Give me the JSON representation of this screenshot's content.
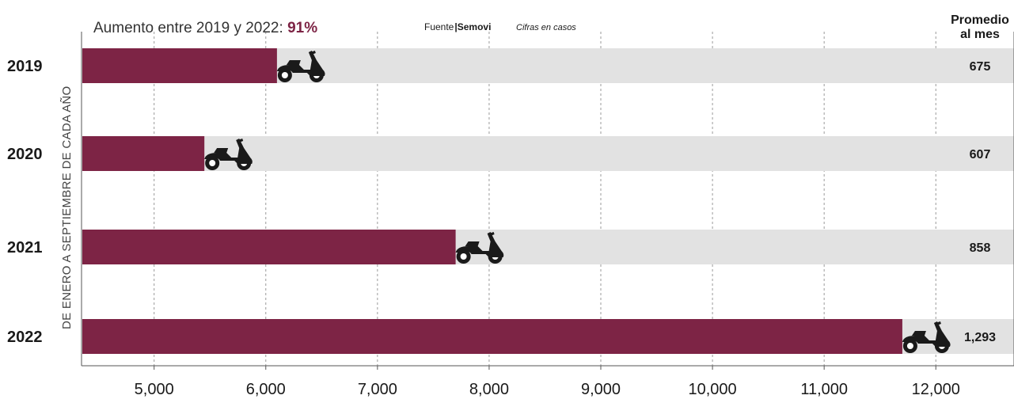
{
  "headline": {
    "text": "Aumento entre 2019 y 2022: ",
    "value": "91%"
  },
  "source": {
    "prefix": "Fuente",
    "name": "Semovi",
    "units": "Cifras en casos"
  },
  "side_label": "DE ENERO A SEPTIEMBRE DE CADA AÑO",
  "avg_header": [
    "Promedio",
    "al mes"
  ],
  "colors": {
    "bar": "#7d2445",
    "track": "#e2e2e2",
    "grid": "#9a9a9a",
    "icon": "#1a1a1a"
  },
  "icon": "motorcycle-icon",
  "chart_data": {
    "type": "bar",
    "orientation": "horizontal",
    "categories": [
      "2019",
      "2020",
      "2021",
      "2022"
    ],
    "values": [
      6100,
      5450,
      7700,
      11700
    ],
    "avg_per_month": [
      "675",
      "607",
      "858",
      "1,293"
    ],
    "xlim": [
      4350,
      12700
    ],
    "xticks": [
      5000,
      6000,
      7000,
      8000,
      9000,
      10000,
      11000,
      12000
    ],
    "xtick_labels": [
      "5,000",
      "6,000",
      "7,000",
      "8,000",
      "9,000",
      "10,000",
      "11,000",
      "12,000"
    ],
    "grid": "vertical-dashed"
  }
}
